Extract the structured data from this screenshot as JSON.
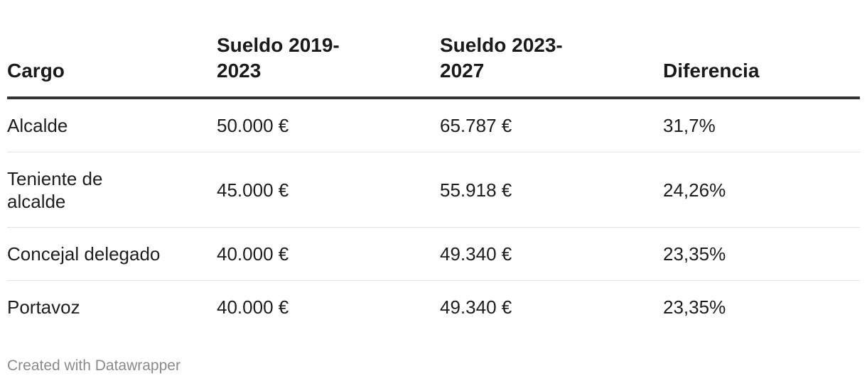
{
  "chart_data": {
    "type": "table",
    "columns": [
      "Cargo",
      "Sueldo 2019-2023",
      "Sueldo 2023-2027",
      "Diferencia"
    ],
    "rows": [
      [
        "Alcalde",
        "50.000 €",
        "65.787 €",
        "31,7%"
      ],
      [
        "Teniente de alcalde",
        "45.000 €",
        "55.918 €",
        "24,26%"
      ],
      [
        "Concejal delegado",
        "40.000 €",
        "49.340 €",
        "23,35%"
      ],
      [
        "Portavoz",
        "40.000 €",
        "49.340 €",
        "23,35%"
      ]
    ]
  },
  "footer": {
    "credit": "Created with Datawrapper"
  },
  "colors": {
    "header_rule": "#333333",
    "row_divider": "#e2e2e2",
    "footer_text": "#8a8a8a"
  }
}
